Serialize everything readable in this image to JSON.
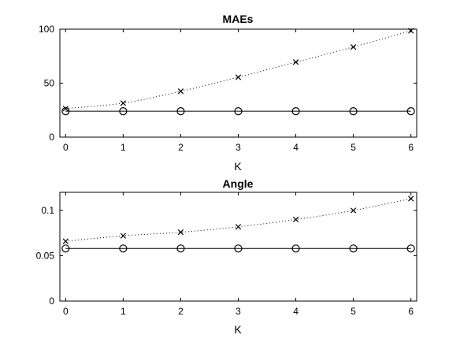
{
  "chart_data": [
    {
      "type": "line",
      "title": "MAEs",
      "xlabel": "K",
      "ylabel": "",
      "xlim": [
        -0.1,
        6.1
      ],
      "ylim": [
        0,
        100
      ],
      "xticks": [
        0,
        1,
        2,
        3,
        4,
        5,
        6
      ],
      "yticks": [
        0,
        50,
        100
      ],
      "grid": false,
      "x": [
        0,
        1,
        2,
        3,
        4,
        5,
        6
      ],
      "series": [
        {
          "style": "dotted",
          "marker": "x",
          "values": [
            26.5,
            31.5,
            42.5,
            55.5,
            69.5,
            83.5,
            98.5
          ]
        },
        {
          "style": "solid",
          "marker": "o",
          "values": [
            24,
            24,
            24,
            24,
            24,
            24,
            24
          ]
        }
      ]
    },
    {
      "type": "line",
      "title": "Angle",
      "xlabel": "K",
      "ylabel": "",
      "xlim": [
        -0.1,
        6.1
      ],
      "ylim": [
        0,
        0.12
      ],
      "xticks": [
        0,
        1,
        2,
        3,
        4,
        5,
        6
      ],
      "yticks": [
        0,
        0.05,
        0.1
      ],
      "grid": false,
      "x": [
        0,
        1,
        2,
        3,
        4,
        5,
        6
      ],
      "series": [
        {
          "style": "dotted",
          "marker": "x",
          "values": [
            0.066,
            0.072,
            0.076,
            0.082,
            0.09,
            0.1,
            0.113
          ]
        },
        {
          "style": "solid",
          "marker": "o",
          "values": [
            0.058,
            0.058,
            0.058,
            0.058,
            0.058,
            0.058,
            0.058
          ]
        }
      ]
    }
  ]
}
